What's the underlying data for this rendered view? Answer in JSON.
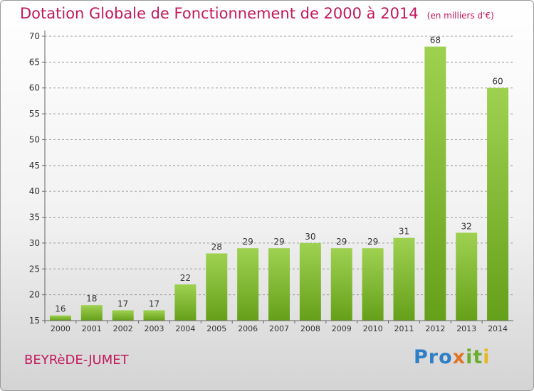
{
  "header": {
    "title": "Dotation Globale de Fonctionnement de 2000 à 2014",
    "unit": "(en milliers d'€)"
  },
  "footer": {
    "commune": "BEYRèDE-JUMET",
    "logo_parts": [
      "Pro",
      "x",
      "it",
      "i"
    ]
  },
  "colors": {
    "title": "#c2185b",
    "bar_light": "#9fd151",
    "bar_dark": "#65a01a",
    "grid": "#9b9b9b",
    "logo_blue": "#2f7fc7",
    "logo_orange": "#e0752a",
    "logo_green": "#6aae2d",
    "logo_yellow": "#e8b820"
  },
  "chart_data": {
    "type": "bar",
    "categories": [
      "2000",
      "2001",
      "2002",
      "2003",
      "2004",
      "2005",
      "2006",
      "2007",
      "2008",
      "2009",
      "2010",
      "2011",
      "2012",
      "2013",
      "2014"
    ],
    "values": [
      16,
      18,
      17,
      17,
      22,
      28,
      29,
      29,
      30,
      29,
      29,
      31,
      68,
      32,
      60
    ],
    "title": "Dotation Globale de Fonctionnement de 2000 à 2014",
    "subtitle": "(en milliers d'€)",
    "xlabel": "",
    "ylabel": "",
    "ylim": [
      15,
      70
    ],
    "yticks": [
      15,
      20,
      25,
      30,
      35,
      40,
      45,
      50,
      55,
      60,
      65,
      70
    ],
    "grid": true,
    "data_labels": true
  }
}
